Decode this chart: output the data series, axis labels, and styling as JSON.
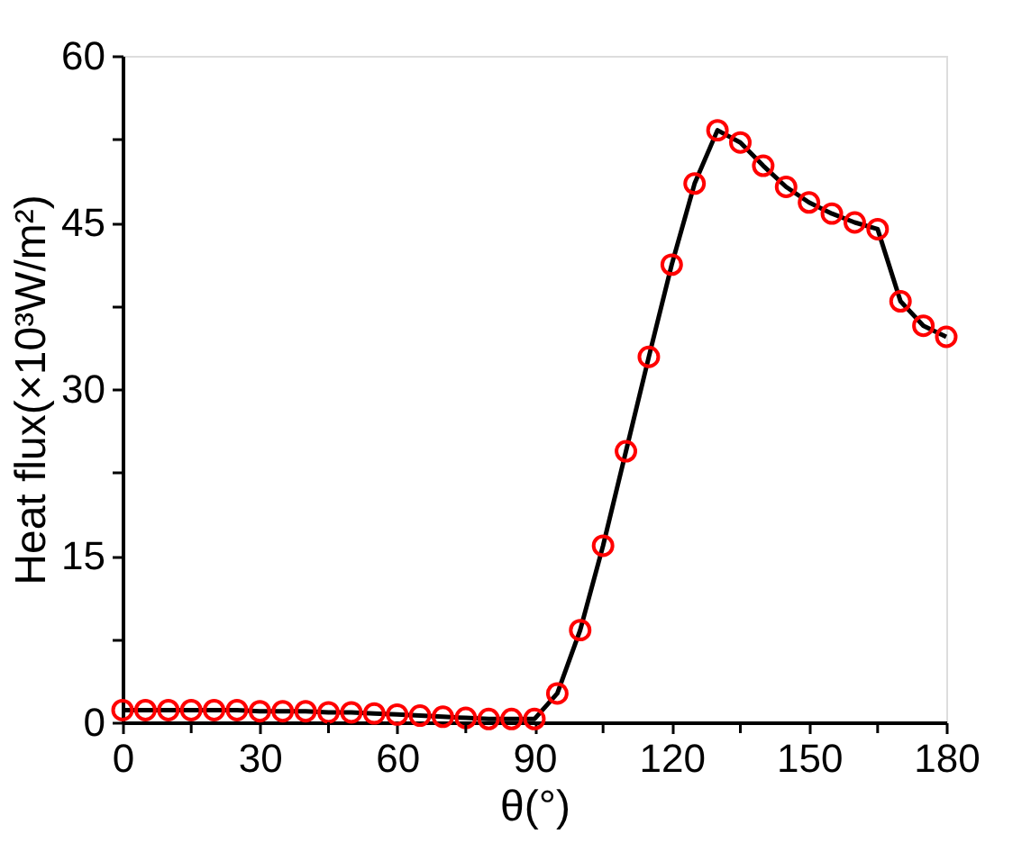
{
  "chart_data": {
    "type": "line",
    "xlabel": "θ(°)",
    "ylabel": "Heat flux(×10³W/m²)",
    "x": [
      0,
      5,
      10,
      15,
      20,
      25,
      30,
      35,
      40,
      45,
      50,
      55,
      60,
      65,
      70,
      75,
      80,
      85,
      90,
      95,
      100,
      105,
      110,
      115,
      120,
      125,
      130,
      135,
      140,
      145,
      150,
      155,
      160,
      165,
      170,
      175,
      180
    ],
    "series": [
      {
        "color": "#ff0000",
        "values": [
          1.1,
          1.1,
          1.1,
          1.1,
          1.1,
          1.1,
          1.0,
          1.0,
          1.0,
          0.9,
          0.9,
          0.8,
          0.7,
          0.6,
          0.5,
          0.4,
          0.3,
          0.3,
          0.3,
          2.6,
          8.3,
          15.9,
          24.4,
          32.9,
          41.2,
          48.5,
          53.3,
          52.2,
          50.1,
          48.2,
          46.8,
          45.8,
          45.0,
          44.4,
          37.9,
          35.7,
          34.7
        ]
      }
    ],
    "xlim": [
      0,
      180
    ],
    "ylim": [
      0,
      60
    ],
    "xticks": [
      0,
      {
        "value": 15,
        "label": null
      },
      30,
      {
        "value": 45,
        "label": null
      },
      60,
      {
        "value": 75,
        "label": null
      },
      90,
      {
        "value": 105,
        "label": null
      },
      120,
      {
        "value": 135,
        "label": null
      },
      150,
      {
        "value": 165,
        "label": null
      },
      180
    ],
    "yticks": [
      0,
      {
        "value": 7.5,
        "label": null
      },
      15,
      {
        "value": 22.5,
        "label": null
      },
      30,
      {
        "value": 37.5,
        "label": null
      },
      45,
      {
        "value": 52.5,
        "label": null
      },
      60
    ],
    "marker": "circle",
    "line_style": "solid"
  }
}
